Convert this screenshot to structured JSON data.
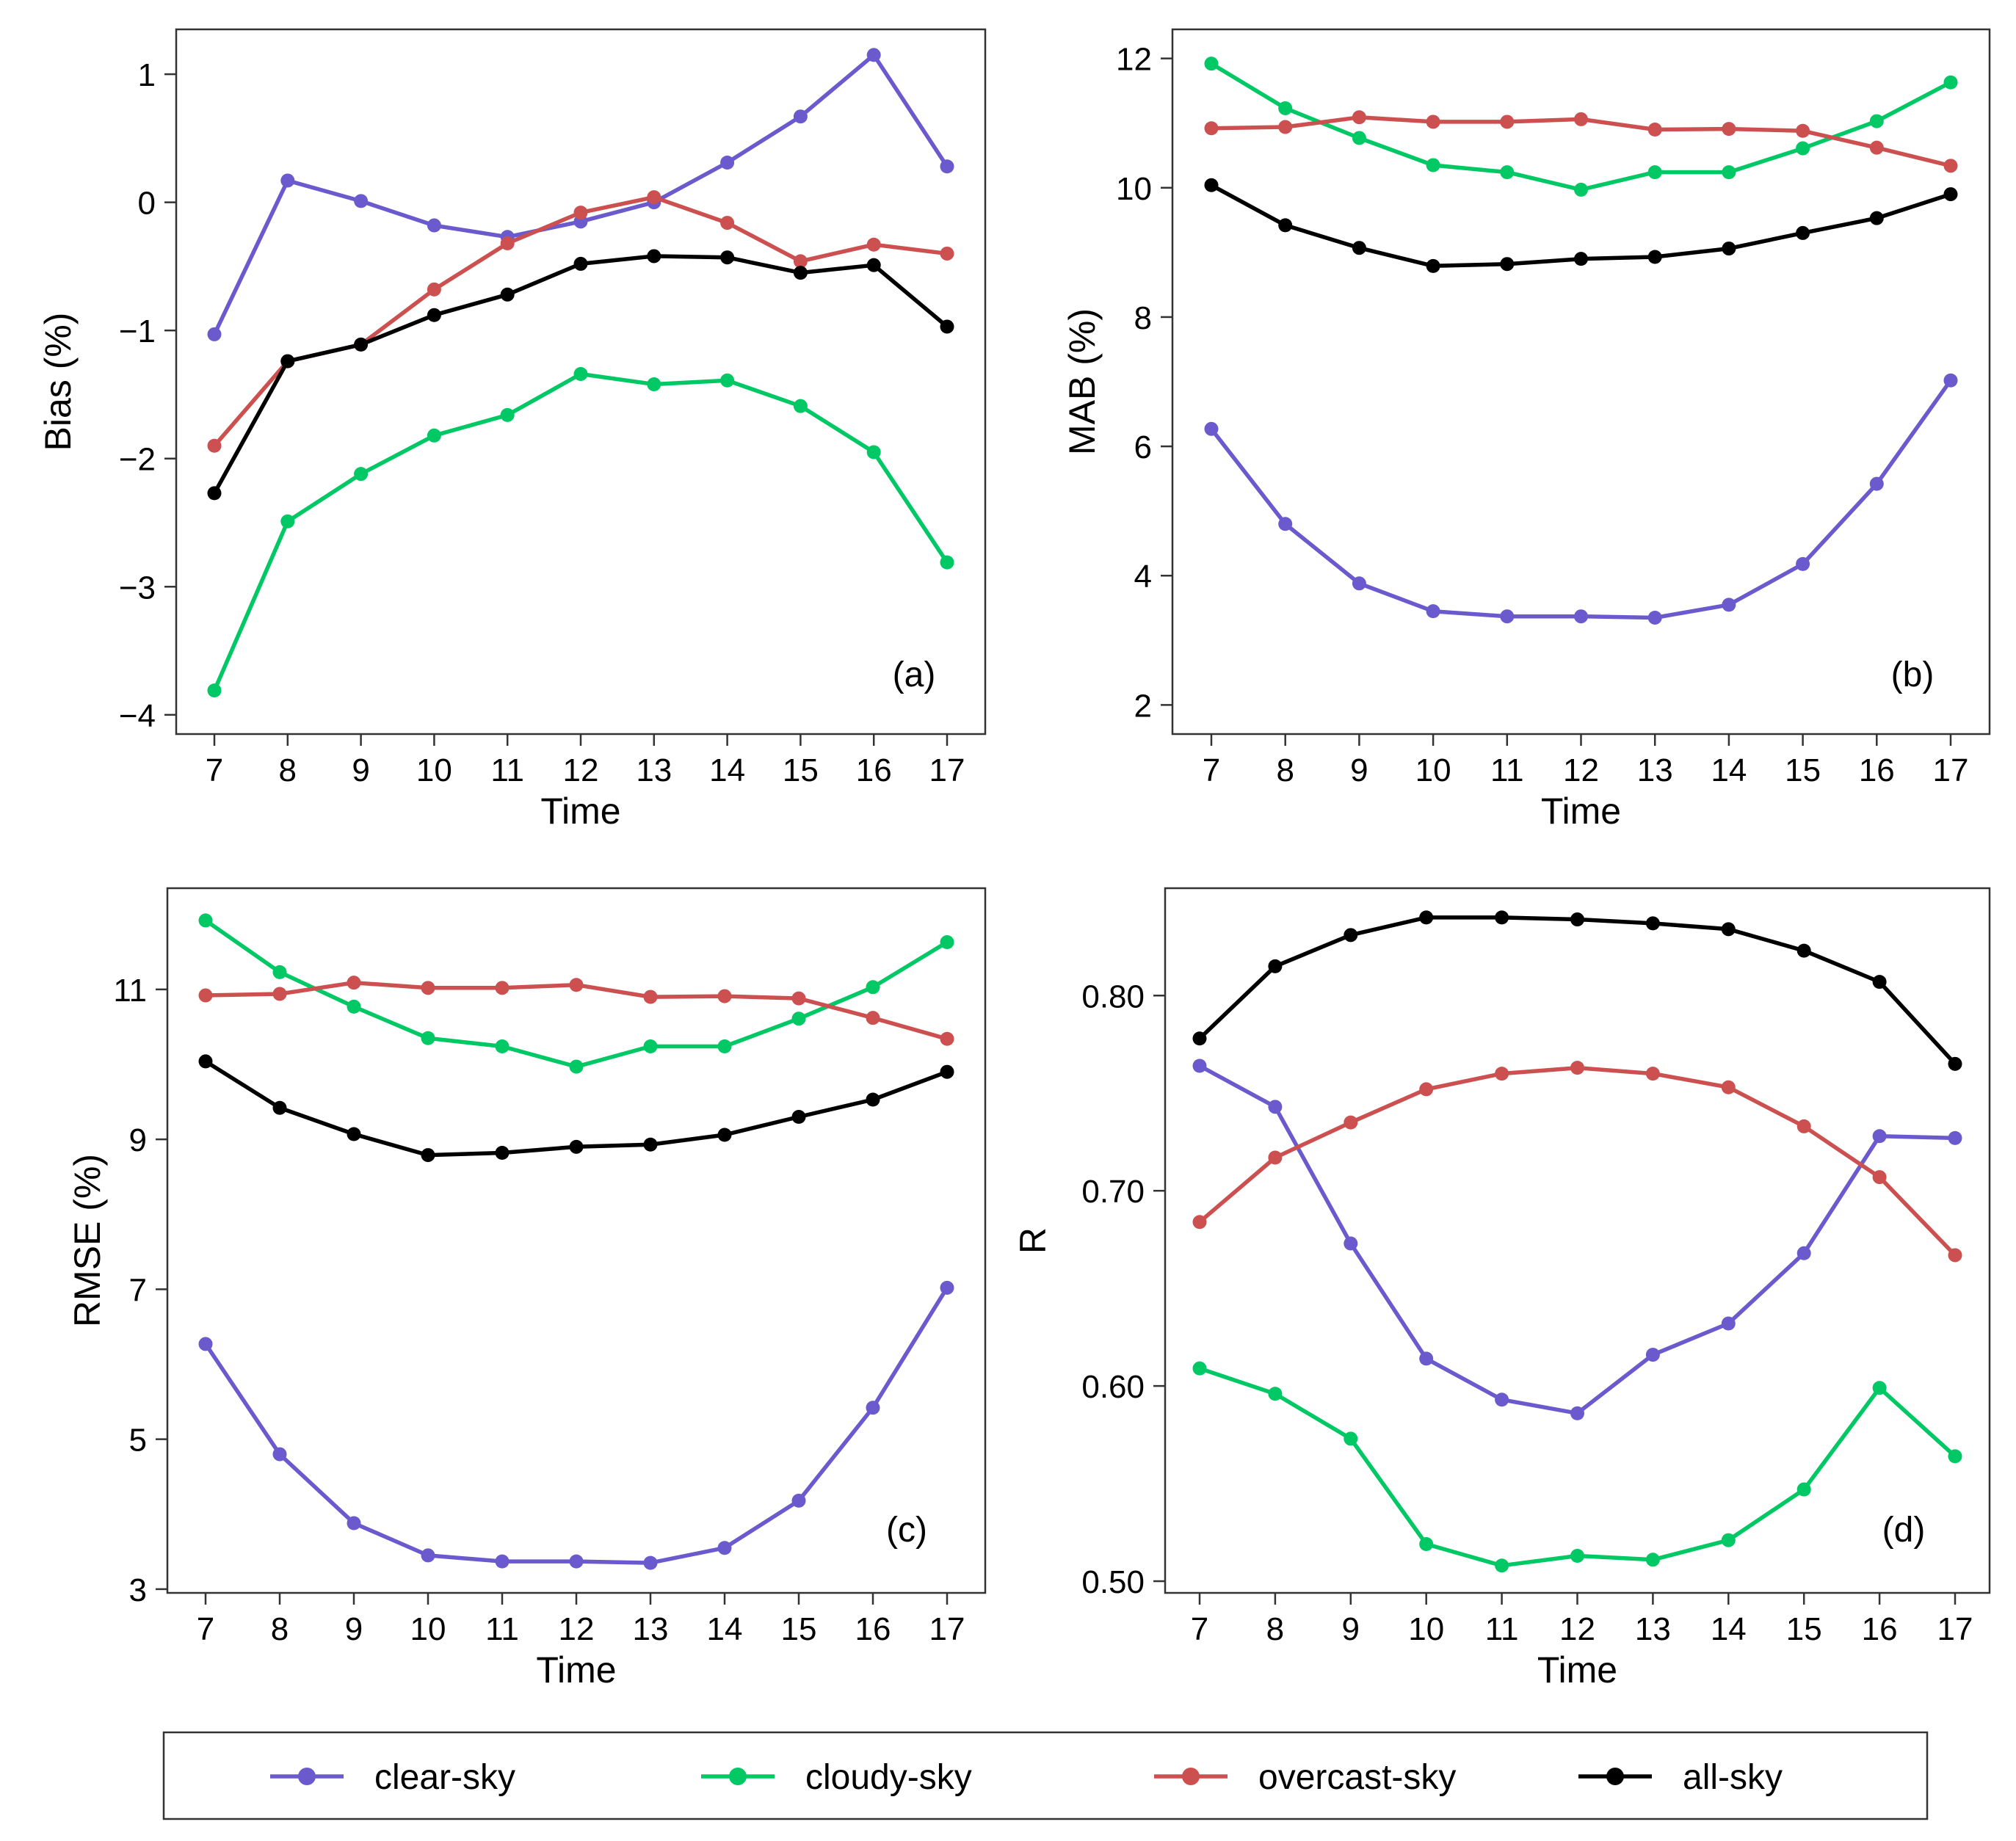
{
  "colors": {
    "clear": "#6a5acd",
    "cloudy": "#00c864",
    "overcast": "#cd5050",
    "all": "#000000"
  },
  "legend": {
    "items": [
      {
        "key": "clear",
        "label": "clear-sky"
      },
      {
        "key": "cloudy",
        "label": "cloudy-sky"
      },
      {
        "key": "overcast",
        "label": "overcast-sky"
      },
      {
        "key": "all",
        "label": "all-sky"
      }
    ]
  },
  "chart_data": [
    {
      "type": "line",
      "panel_label": "(a)",
      "xlabel": "Time",
      "ylabel": "Bias (%)",
      "x": [
        7,
        8,
        9,
        10,
        11,
        12,
        13,
        14,
        15,
        16,
        17
      ],
      "ylim": [
        -4.15,
        1.35
      ],
      "yticks": [
        -4,
        -3,
        -2,
        -1,
        0,
        1
      ],
      "ytick_labels": [
        "−4",
        "−3",
        "−2",
        "−1",
        "0",
        "1"
      ],
      "series": [
        {
          "key": "clear",
          "name": "clear-sky",
          "values": [
            -1.03,
            0.17,
            0.01,
            -0.18,
            -0.27,
            -0.15,
            0.0,
            0.31,
            0.67,
            1.15,
            0.28
          ]
        },
        {
          "key": "cloudy",
          "name": "cloudy-sky",
          "values": [
            -3.81,
            -2.49,
            -2.12,
            -1.82,
            -1.66,
            -1.34,
            -1.42,
            -1.39,
            -1.59,
            -1.95,
            -2.81
          ]
        },
        {
          "key": "overcast",
          "name": "overcast-sky",
          "values": [
            -1.9,
            -1.24,
            -1.11,
            -0.68,
            -0.32,
            -0.08,
            0.04,
            -0.16,
            -0.46,
            -0.33,
            -0.4
          ]
        },
        {
          "key": "all",
          "name": "all-sky",
          "values": [
            -2.27,
            -1.24,
            -1.11,
            -0.88,
            -0.72,
            -0.48,
            -0.42,
            -0.43,
            -0.55,
            -0.49,
            -0.97
          ]
        }
      ]
    },
    {
      "type": "line",
      "panel_label": "(b)",
      "xlabel": "Time",
      "ylabel": "MAB (%)",
      "x": [
        7,
        8,
        9,
        10,
        11,
        12,
        13,
        14,
        15,
        16,
        17
      ],
      "ylim": [
        1.55,
        12.45
      ],
      "yticks": [
        2,
        4,
        6,
        8,
        10,
        12
      ],
      "ytick_labels": [
        "2",
        "4",
        "6",
        "8",
        "10",
        "12"
      ],
      "series": [
        {
          "key": "clear",
          "name": "clear-sky",
          "values": [
            6.27,
            4.8,
            3.88,
            3.45,
            3.37,
            3.37,
            3.35,
            3.55,
            4.18,
            5.42,
            7.02
          ]
        },
        {
          "key": "cloudy",
          "name": "cloudy-sky",
          "values": [
            11.92,
            11.23,
            10.77,
            10.35,
            10.24,
            9.97,
            10.24,
            10.24,
            10.61,
            11.03,
            11.63
          ]
        },
        {
          "key": "overcast",
          "name": "overcast-sky",
          "values": [
            10.92,
            10.94,
            11.09,
            11.02,
            11.02,
            11.06,
            10.9,
            10.91,
            10.88,
            10.62,
            10.34
          ]
        },
        {
          "key": "all",
          "name": "all-sky",
          "values": [
            10.04,
            9.42,
            9.07,
            8.79,
            8.82,
            8.9,
            8.93,
            9.06,
            9.3,
            9.53,
            9.9
          ]
        }
      ]
    },
    {
      "type": "line",
      "panel_label": "(c)",
      "xlabel": "Time",
      "ylabel": "RMSE (%)",
      "x": [
        7,
        8,
        9,
        10,
        11,
        12,
        13,
        14,
        15,
        16,
        17
      ],
      "ylim": [
        2.95,
        12.35
      ],
      "yticks": [
        3,
        5,
        7,
        9,
        11
      ],
      "ytick_labels": [
        "3",
        "5",
        "7",
        "9",
        "11"
      ],
      "series": [
        {
          "key": "clear",
          "name": "clear-sky",
          "values": [
            6.27,
            4.8,
            3.88,
            3.45,
            3.37,
            3.37,
            3.35,
            3.55,
            4.18,
            5.42,
            7.02
          ]
        },
        {
          "key": "cloudy",
          "name": "cloudy-sky",
          "values": [
            11.92,
            11.23,
            10.77,
            10.35,
            10.24,
            9.97,
            10.24,
            10.24,
            10.61,
            11.03,
            11.63
          ]
        },
        {
          "key": "overcast",
          "name": "overcast-sky",
          "values": [
            10.92,
            10.94,
            11.09,
            11.02,
            11.02,
            11.06,
            10.9,
            10.91,
            10.88,
            10.62,
            10.34
          ]
        },
        {
          "key": "all",
          "name": "all-sky",
          "values": [
            10.04,
            9.42,
            9.07,
            8.79,
            8.82,
            8.9,
            8.93,
            9.06,
            9.3,
            9.53,
            9.9
          ]
        }
      ]
    },
    {
      "type": "line",
      "panel_label": "(d)",
      "xlabel": "Time",
      "ylabel": "R",
      "x": [
        7,
        8,
        9,
        10,
        11,
        12,
        13,
        14,
        15,
        16,
        17
      ],
      "ylim": [
        0.494,
        0.855
      ],
      "yticks": [
        0.5,
        0.6,
        0.7,
        0.8
      ],
      "ytick_labels": [
        "0.50",
        "0.60",
        "0.70",
        "0.80"
      ],
      "series": [
        {
          "key": "clear",
          "name": "clear-sky",
          "values": [
            0.764,
            0.743,
            0.673,
            0.614,
            0.593,
            0.586,
            0.616,
            0.632,
            0.668,
            0.728,
            0.727
          ]
        },
        {
          "key": "cloudy",
          "name": "cloudy-sky",
          "values": [
            0.609,
            0.596,
            0.573,
            0.519,
            0.508,
            0.513,
            0.511,
            0.521,
            0.547,
            0.599,
            0.564
          ]
        },
        {
          "key": "overcast",
          "name": "overcast-sky",
          "values": [
            0.684,
            0.717,
            0.735,
            0.752,
            0.76,
            0.763,
            0.76,
            0.753,
            0.733,
            0.707,
            0.667
          ]
        },
        {
          "key": "all",
          "name": "all-sky",
          "values": [
            0.778,
            0.815,
            0.831,
            0.84,
            0.84,
            0.839,
            0.837,
            0.834,
            0.823,
            0.807,
            0.765
          ]
        }
      ]
    }
  ]
}
